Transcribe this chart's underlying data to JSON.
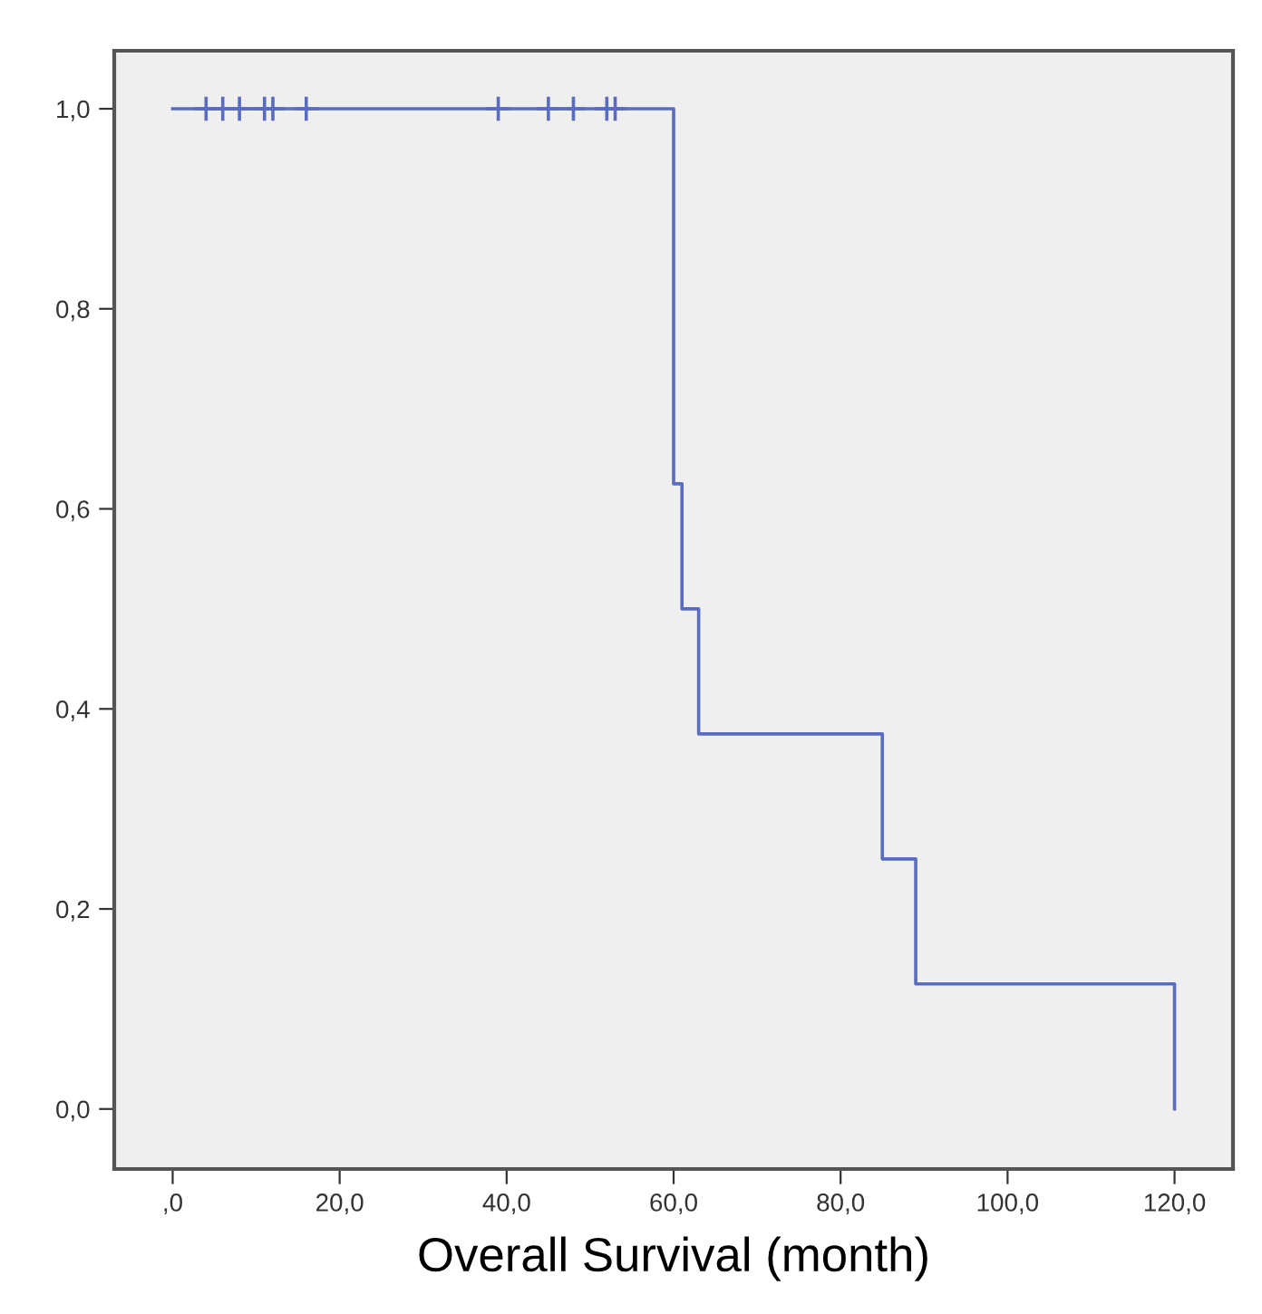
{
  "chart_data": {
    "type": "step",
    "xlabel": "Overall Survival (month)",
    "series": [
      {
        "color": "#5a6cc0",
        "x": [
          0,
          60,
          61,
          63,
          85,
          89,
          120
        ],
        "values": [
          1,
          0.625,
          0.5,
          0.375,
          0.25,
          0.125,
          0
        ],
        "marker": "none"
      },
      {
        "type": "scatter",
        "color": "#5a6cc0",
        "x": [
          4,
          6,
          8,
          11,
          12,
          16,
          39,
          45,
          48,
          52,
          53
        ],
        "values": [
          1,
          1,
          1,
          1,
          1,
          1,
          1,
          1,
          1,
          1,
          1
        ],
        "marker": "cross"
      }
    ],
    "xlim": [
      -7,
      127
    ],
    "ylim": [
      -0.06,
      1.058
    ],
    "xticks": [
      {
        "value": 0,
        "label": ",0"
      },
      {
        "value": 20,
        "label": "20,0"
      },
      {
        "value": 40,
        "label": "40,0"
      },
      {
        "value": 60,
        "label": "60,0"
      },
      {
        "value": 80,
        "label": "80,0"
      },
      {
        "value": 100,
        "label": "100,0"
      },
      {
        "value": 120,
        "label": "120,0"
      }
    ],
    "yticks": [
      {
        "value": 0,
        "label": "0,0"
      },
      {
        "value": 0.2,
        "label": "0,2"
      },
      {
        "value": 0.4,
        "label": "0,4"
      },
      {
        "value": 0.6,
        "label": "0,6"
      },
      {
        "value": 0.8,
        "label": "0,8"
      },
      {
        "value": 1,
        "label": "1,0"
      }
    ],
    "grid": false,
    "legend": false
  }
}
